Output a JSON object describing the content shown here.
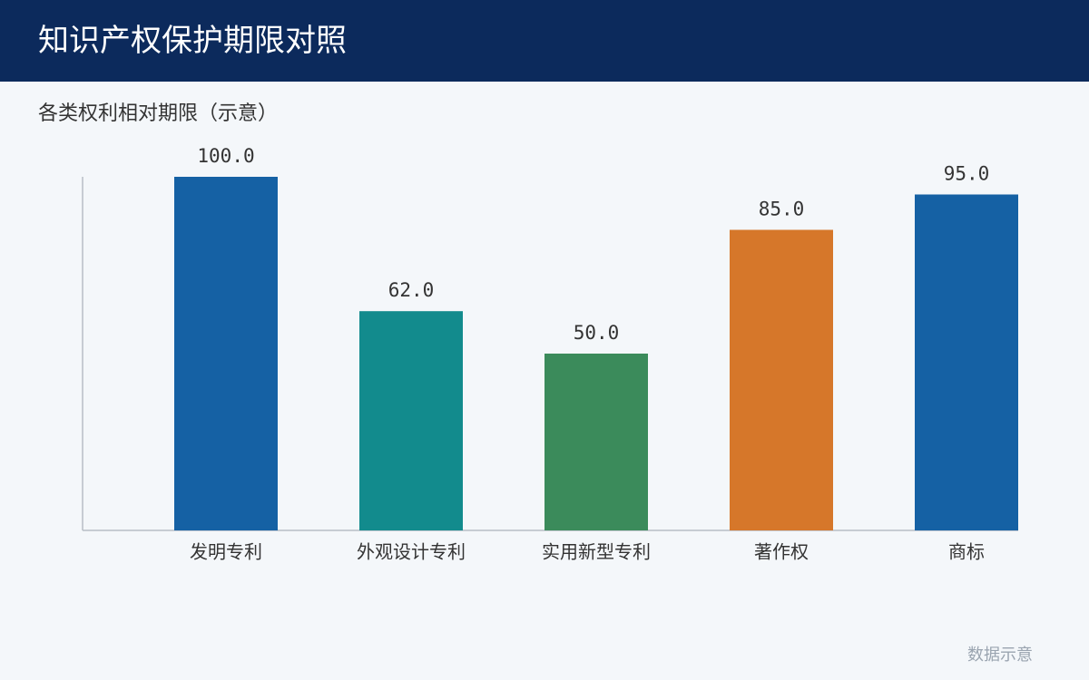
{
  "header": {
    "title": "知识产权保护期限对照"
  },
  "chart_data": {
    "type": "bar",
    "title": "各类权利相对期限（示意）",
    "categories": [
      "发明专利",
      "外观设计专利",
      "实用新型专利",
      "著作权",
      "商标"
    ],
    "values": [
      100,
      62,
      50,
      85,
      95
    ],
    "value_labels": [
      "100.0",
      "62.0",
      "50.0",
      "85.0",
      "95.0"
    ],
    "colors": [
      "#1561a4",
      "#128b8d",
      "#3b8b5b",
      "#d6772a",
      "#1561a4"
    ],
    "ylim": [
      0,
      100
    ]
  },
  "footer": {
    "note": "数据示意"
  }
}
